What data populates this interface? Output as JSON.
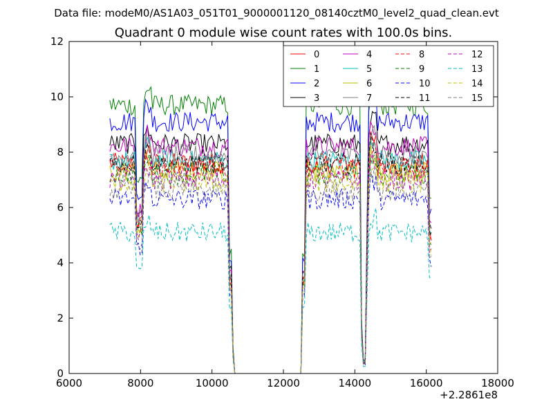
{
  "figure": {
    "suptitle": "Data file: modeM0/AS1A03_051T01_9000001120_08140cztM0_level2_quad_clean.evt"
  },
  "chart_data": {
    "type": "line",
    "title": "Quadrant 0 module wise count rates with 100.0s bins.",
    "xlabel": "",
    "ylabel": "",
    "xlim": [
      6000,
      18000
    ],
    "ylim": [
      0,
      12
    ],
    "x_ticks": [
      6000,
      8000,
      10000,
      12000,
      14000,
      16000,
      18000
    ],
    "x_tick_labels": [
      "6000",
      "8000",
      "10000",
      "12000",
      "14000",
      "16000",
      "18000"
    ],
    "y_ticks": [
      0,
      2,
      4,
      6,
      8,
      10,
      12
    ],
    "y_tick_labels": [
      "0",
      "2",
      "4",
      "6",
      "8",
      "10",
      "12"
    ],
    "x_offset_label": "+2.2861e8",
    "grid": false,
    "legend": {
      "placement": "upper-right",
      "columns": 4
    },
    "series": [
      {
        "name": "0",
        "color": "#ff0000",
        "dash": "solid",
        "base": 7.6
      },
      {
        "name": "1",
        "color": "#008000",
        "dash": "solid",
        "base": 9.7
      },
      {
        "name": "2",
        "color": "#0000ff",
        "dash": "solid",
        "base": 9.1
      },
      {
        "name": "3",
        "color": "#000000",
        "dash": "solid",
        "base": 8.3
      },
      {
        "name": "4",
        "color": "#bf00bf",
        "dash": "solid",
        "base": 8.2
      },
      {
        "name": "5",
        "color": "#00bfbf",
        "dash": "solid",
        "base": 7.7
      },
      {
        "name": "6",
        "color": "#bfbf00",
        "dash": "solid",
        "base": 7.3
      },
      {
        "name": "7",
        "color": "#808080",
        "dash": "solid",
        "base": 7.9
      },
      {
        "name": "8",
        "color": "#ff0000",
        "dash": "dashed",
        "base": 7.4
      },
      {
        "name": "9",
        "color": "#008000",
        "dash": "dashed",
        "base": 7.2
      },
      {
        "name": "10",
        "color": "#0000ff",
        "dash": "dashed",
        "base": 6.3
      },
      {
        "name": "11",
        "color": "#000000",
        "dash": "dashed",
        "base": 7.6
      },
      {
        "name": "12",
        "color": "#bf00bf",
        "dash": "dashed",
        "base": 7.0
      },
      {
        "name": "13",
        "color": "#00bfbf",
        "dash": "dashed",
        "base": 5.1
      },
      {
        "name": "14",
        "color": "#bfbf00",
        "dash": "dashed",
        "base": 6.9
      },
      {
        "name": "15",
        "color": "#808080",
        "dash": "dashed",
        "base": 6.6
      }
    ]
  }
}
